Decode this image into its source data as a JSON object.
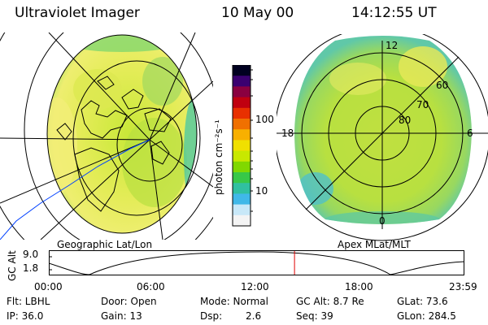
{
  "header": {
    "title": "Ultraviolet Imager",
    "date": "10 May 00",
    "time": "14:12:55 UT"
  },
  "colorbar": {
    "unit_label": "photon cm⁻²s⁻¹",
    "ticks": [
      "100",
      "10"
    ],
    "colors": [
      "#000020",
      "#3a0070",
      "#8a0040",
      "#c00010",
      "#e83000",
      "#f07000",
      "#f8b000",
      "#f0e000",
      "#c8e800",
      "#80d800",
      "#38c848",
      "#30c0a0",
      "#40b8e8",
      "#c8e8f8",
      "#f4f4f4"
    ]
  },
  "left_map": {
    "label": "Geographic Lat/Lon"
  },
  "right_map": {
    "label": "Apex MLat/MLT",
    "mlt_labels": {
      "top": "12",
      "left": "18",
      "right": "6",
      "bottom": "0"
    },
    "lat_labels": [
      "60",
      "70",
      "80"
    ]
  },
  "timeline": {
    "ylabel": "GC Alt",
    "y_ticks": [
      "9.0",
      "1.8"
    ],
    "x_ticks": [
      "00:00",
      "06:00",
      "12:00",
      "18:00",
      "23:59"
    ],
    "current_fraction_of_day": 0.5923,
    "marker_color": "#e00000"
  },
  "info": {
    "flt": "Flt: LBHL",
    "ip": "IP: 36.0",
    "door": "Door: Open",
    "gain": "Gain: 13",
    "mode": "Mode: Normal",
    "dsp_label": "Dsp:",
    "dsp_value": "2.6",
    "gcalt": "GC Alt: 8.7 Re",
    "seq": "Seq: 39",
    "glat": "GLat: 73.6",
    "glon": "GLon: 284.5"
  }
}
